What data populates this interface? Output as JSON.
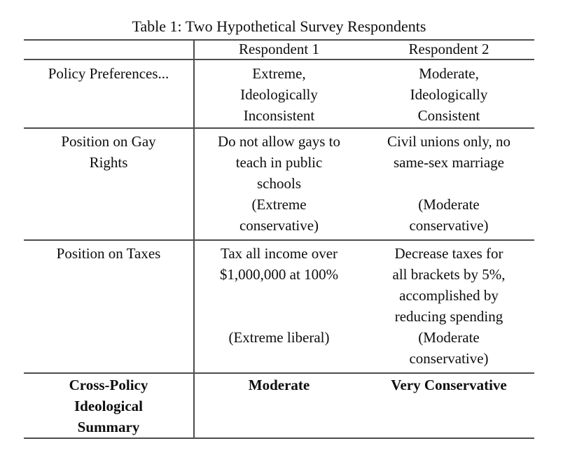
{
  "title": "Table 1: Two Hypothetical Survey Respondents",
  "table": {
    "header": {
      "label": "",
      "respondent1": "Respondent 1",
      "respondent2": "Respondent 2"
    },
    "rows": {
      "policy_preferences": {
        "label_lines": [
          "Policy Preferences..."
        ],
        "respondent1_lines": [
          "Extreme,",
          "Ideologically",
          "Inconsistent"
        ],
        "respondent2_lines": [
          "Moderate,",
          "Ideologically",
          "Consistent"
        ]
      },
      "gay_rights": {
        "label_lines": [
          "Position on Gay",
          "Rights"
        ],
        "respondent1_lines": [
          "Do not allow gays to",
          "teach in public",
          "schools",
          "(Extreme",
          "conservative)"
        ],
        "respondent2_lines": [
          "Civil unions only, no",
          "same-sex marriage",
          "",
          "(Moderate",
          "conservative)"
        ]
      },
      "taxes": {
        "label_lines": [
          "Position on Taxes"
        ],
        "respondent1_lines": [
          "Tax all income over",
          "$1,000,000 at 100%",
          "",
          "",
          "(Extreme liberal)"
        ],
        "respondent2_lines": [
          "Decrease taxes for",
          "all brackets by 5%,",
          "accomplished by",
          "reducing spending",
          "(Moderate",
          "conservative)"
        ]
      },
      "summary": {
        "label_lines": [
          "Cross-Policy",
          "Ideological",
          "Summary"
        ],
        "respondent1_lines": [
          "Moderate"
        ],
        "respondent2_lines": [
          "Very Conservative"
        ]
      }
    }
  }
}
